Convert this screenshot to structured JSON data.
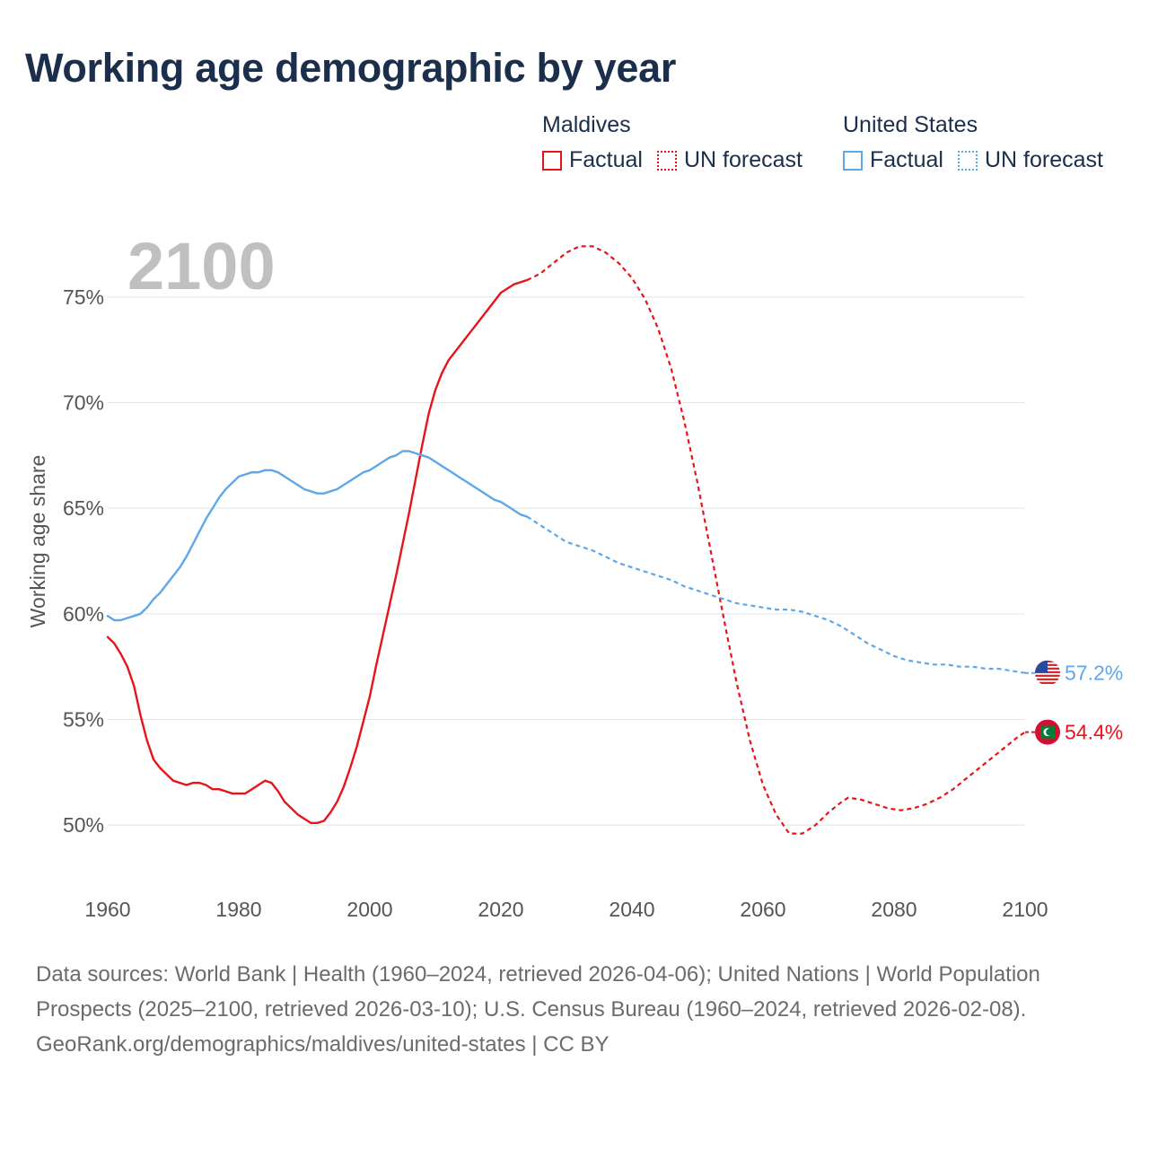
{
  "title": "Working age demographic by year",
  "legend": {
    "groups": [
      {
        "country": "Maldives",
        "factual_label": "Factual",
        "forecast_label": "UN forecast",
        "color": "#e8141b"
      },
      {
        "country": "United States",
        "factual_label": "Factual",
        "forecast_label": "UN forecast",
        "color": "#5ea8e8"
      }
    ]
  },
  "chart_data": {
    "type": "line",
    "title": "Working age demographic by year",
    "xlabel": "",
    "ylabel": "Working age share",
    "year_display": "2100",
    "xlim": [
      1960,
      2100
    ],
    "ylim": [
      47.5,
      77.5
    ],
    "x_ticks": [
      "1960",
      "1980",
      "2000",
      "2020",
      "2040",
      "2060",
      "2080",
      "2100"
    ],
    "y_ticks": [
      "50%",
      "55%",
      "60%",
      "65%",
      "70%",
      "75%"
    ],
    "y_tick_values": [
      50,
      55,
      60,
      65,
      70,
      75
    ],
    "forecast_start": 2024,
    "series": [
      {
        "name": "Maldives",
        "color": "#e8141b",
        "end_label": "54.4%",
        "points": [
          [
            1960,
            58.9
          ],
          [
            1961,
            58.6
          ],
          [
            1962,
            58.1
          ],
          [
            1963,
            57.5
          ],
          [
            1964,
            56.6
          ],
          [
            1965,
            55.2
          ],
          [
            1966,
            54.0
          ],
          [
            1967,
            53.1
          ],
          [
            1968,
            52.7
          ],
          [
            1969,
            52.4
          ],
          [
            1970,
            52.1
          ],
          [
            1971,
            52.0
          ],
          [
            1972,
            51.9
          ],
          [
            1973,
            52.0
          ],
          [
            1974,
            52.0
          ],
          [
            1975,
            51.9
          ],
          [
            1976,
            51.7
          ],
          [
            1977,
            51.7
          ],
          [
            1978,
            51.6
          ],
          [
            1979,
            51.5
          ],
          [
            1980,
            51.5
          ],
          [
            1981,
            51.5
          ],
          [
            1982,
            51.7
          ],
          [
            1983,
            51.9
          ],
          [
            1984,
            52.1
          ],
          [
            1985,
            52.0
          ],
          [
            1986,
            51.6
          ],
          [
            1987,
            51.1
          ],
          [
            1988,
            50.8
          ],
          [
            1989,
            50.5
          ],
          [
            1990,
            50.3
          ],
          [
            1991,
            50.1
          ],
          [
            1992,
            50.1
          ],
          [
            1993,
            50.2
          ],
          [
            1994,
            50.6
          ],
          [
            1995,
            51.1
          ],
          [
            1996,
            51.8
          ],
          [
            1997,
            52.7
          ],
          [
            1998,
            53.7
          ],
          [
            1999,
            54.9
          ],
          [
            2000,
            56.1
          ],
          [
            2001,
            57.6
          ],
          [
            2002,
            59.0
          ],
          [
            2003,
            60.4
          ],
          [
            2004,
            61.8
          ],
          [
            2005,
            63.3
          ],
          [
            2006,
            64.8
          ],
          [
            2007,
            66.4
          ],
          [
            2008,
            68.0
          ],
          [
            2009,
            69.5
          ],
          [
            2010,
            70.6
          ],
          [
            2011,
            71.4
          ],
          [
            2012,
            72.0
          ],
          [
            2013,
            72.4
          ],
          [
            2014,
            72.8
          ],
          [
            2015,
            73.2
          ],
          [
            2016,
            73.6
          ],
          [
            2017,
            74.0
          ],
          [
            2018,
            74.4
          ],
          [
            2019,
            74.8
          ],
          [
            2020,
            75.2
          ],
          [
            2021,
            75.4
          ],
          [
            2022,
            75.6
          ],
          [
            2023,
            75.7
          ],
          [
            2024,
            75.8
          ],
          [
            2026,
            76.1
          ],
          [
            2028,
            76.6
          ],
          [
            2030,
            77.1
          ],
          [
            2032,
            77.4
          ],
          [
            2034,
            77.4
          ],
          [
            2036,
            77.1
          ],
          [
            2038,
            76.6
          ],
          [
            2040,
            75.9
          ],
          [
            2042,
            74.9
          ],
          [
            2044,
            73.5
          ],
          [
            2046,
            71.6
          ],
          [
            2048,
            69.1
          ],
          [
            2050,
            66.2
          ],
          [
            2052,
            63.0
          ],
          [
            2054,
            59.8
          ],
          [
            2056,
            56.7
          ],
          [
            2058,
            54.0
          ],
          [
            2060,
            51.9
          ],
          [
            2062,
            50.5
          ],
          [
            2064,
            49.6
          ],
          [
            2066,
            49.6
          ],
          [
            2068,
            50.0
          ],
          [
            2070,
            50.6
          ],
          [
            2072,
            51.1
          ],
          [
            2073,
            51.3
          ],
          [
            2075,
            51.2
          ],
          [
            2077,
            51.0
          ],
          [
            2079,
            50.8
          ],
          [
            2081,
            50.7
          ],
          [
            2083,
            50.8
          ],
          [
            2085,
            51.0
          ],
          [
            2087,
            51.3
          ],
          [
            2089,
            51.7
          ],
          [
            2091,
            52.2
          ],
          [
            2093,
            52.7
          ],
          [
            2095,
            53.2
          ],
          [
            2097,
            53.7
          ],
          [
            2099,
            54.2
          ],
          [
            2100,
            54.4
          ]
        ]
      },
      {
        "name": "United States",
        "color": "#5ea8e8",
        "end_label": "57.2%",
        "points": [
          [
            1960,
            59.9
          ],
          [
            1961,
            59.7
          ],
          [
            1962,
            59.7
          ],
          [
            1963,
            59.8
          ],
          [
            1964,
            59.9
          ],
          [
            1965,
            60.0
          ],
          [
            1966,
            60.3
          ],
          [
            1967,
            60.7
          ],
          [
            1968,
            61.0
          ],
          [
            1969,
            61.4
          ],
          [
            1970,
            61.8
          ],
          [
            1971,
            62.2
          ],
          [
            1972,
            62.7
          ],
          [
            1973,
            63.3
          ],
          [
            1974,
            63.9
          ],
          [
            1975,
            64.5
          ],
          [
            1976,
            65.0
          ],
          [
            1977,
            65.5
          ],
          [
            1978,
            65.9
          ],
          [
            1979,
            66.2
          ],
          [
            1980,
            66.5
          ],
          [
            1981,
            66.6
          ],
          [
            1982,
            66.7
          ],
          [
            1983,
            66.7
          ],
          [
            1984,
            66.8
          ],
          [
            1985,
            66.8
          ],
          [
            1986,
            66.7
          ],
          [
            1987,
            66.5
          ],
          [
            1988,
            66.3
          ],
          [
            1989,
            66.1
          ],
          [
            1990,
            65.9
          ],
          [
            1991,
            65.8
          ],
          [
            1992,
            65.7
          ],
          [
            1993,
            65.7
          ],
          [
            1994,
            65.8
          ],
          [
            1995,
            65.9
          ],
          [
            1996,
            66.1
          ],
          [
            1997,
            66.3
          ],
          [
            1998,
            66.5
          ],
          [
            1999,
            66.7
          ],
          [
            2000,
            66.8
          ],
          [
            2001,
            67.0
          ],
          [
            2002,
            67.2
          ],
          [
            2003,
            67.4
          ],
          [
            2004,
            67.5
          ],
          [
            2005,
            67.7
          ],
          [
            2006,
            67.7
          ],
          [
            2007,
            67.6
          ],
          [
            2008,
            67.5
          ],
          [
            2009,
            67.4
          ],
          [
            2010,
            67.2
          ],
          [
            2011,
            67.0
          ],
          [
            2012,
            66.8
          ],
          [
            2013,
            66.6
          ],
          [
            2014,
            66.4
          ],
          [
            2015,
            66.2
          ],
          [
            2016,
            66.0
          ],
          [
            2017,
            65.8
          ],
          [
            2018,
            65.6
          ],
          [
            2019,
            65.4
          ],
          [
            2020,
            65.3
          ],
          [
            2021,
            65.1
          ],
          [
            2022,
            64.9
          ],
          [
            2023,
            64.7
          ],
          [
            2024,
            64.6
          ],
          [
            2026,
            64.2
          ],
          [
            2028,
            63.8
          ],
          [
            2030,
            63.4
          ],
          [
            2032,
            63.2
          ],
          [
            2034,
            63.0
          ],
          [
            2036,
            62.7
          ],
          [
            2038,
            62.4
          ],
          [
            2040,
            62.2
          ],
          [
            2042,
            62.0
          ],
          [
            2044,
            61.8
          ],
          [
            2046,
            61.6
          ],
          [
            2048,
            61.3
          ],
          [
            2050,
            61.1
          ],
          [
            2052,
            60.9
          ],
          [
            2054,
            60.7
          ],
          [
            2056,
            60.5
          ],
          [
            2058,
            60.4
          ],
          [
            2060,
            60.3
          ],
          [
            2062,
            60.2
          ],
          [
            2064,
            60.2
          ],
          [
            2066,
            60.1
          ],
          [
            2068,
            59.9
          ],
          [
            2070,
            59.7
          ],
          [
            2072,
            59.4
          ],
          [
            2074,
            59.0
          ],
          [
            2076,
            58.6
          ],
          [
            2078,
            58.3
          ],
          [
            2080,
            58.0
          ],
          [
            2082,
            57.8
          ],
          [
            2084,
            57.7
          ],
          [
            2086,
            57.6
          ],
          [
            2088,
            57.6
          ],
          [
            2090,
            57.5
          ],
          [
            2092,
            57.5
          ],
          [
            2094,
            57.4
          ],
          [
            2096,
            57.4
          ],
          [
            2098,
            57.3
          ],
          [
            2100,
            57.2
          ]
        ]
      }
    ]
  },
  "footer": {
    "sources": "Data sources: World Bank | Health (1960–2024, retrieved 2026-04-06); United Nations | World Population Prospects (2025–2100, retrieved 2026-03-10); U.S. Census Bureau (1960–2024, retrieved 2026-02-08).",
    "attribution": "GeoRank.org/demographics/maldives/united-states | CC BY"
  }
}
